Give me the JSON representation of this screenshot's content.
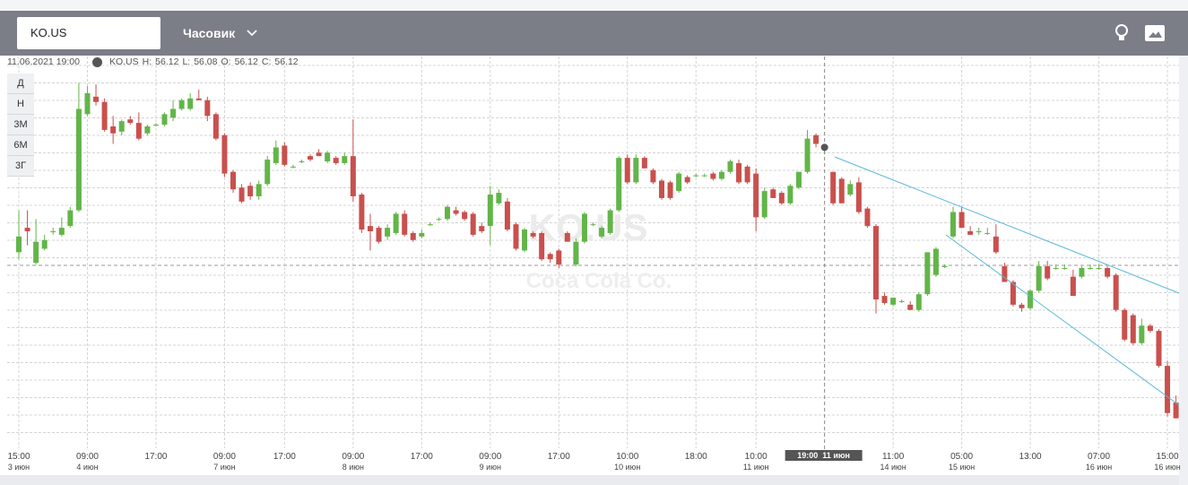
{
  "symbol": "KO.US",
  "interval": "Часовик",
  "periods": [
    "Д",
    "Н",
    "3М",
    "6М",
    "3Г"
  ],
  "info": {
    "datetime": "11.06.2021 19:00",
    "high_label": "H:",
    "low_label": "L:",
    "open_label": "O:",
    "close_label": "C:"
  },
  "watermark_name": "Coca Cola Co.",
  "chart_data": {
    "type": "candlestick",
    "up_color": "#62b549",
    "down_color": "#c9504d",
    "ylim": [
      54.45,
      56.64
    ],
    "grid": true,
    "crosshair_label": "19:00  11 июн",
    "categories": [
      "15:00",
      null,
      null,
      null,
      null,
      null,
      null,
      null,
      "09:00",
      null,
      null,
      null,
      null,
      null,
      null,
      null,
      "17:00",
      null,
      null,
      null,
      null,
      null,
      null,
      null,
      "09:00",
      null,
      null,
      null,
      null,
      null,
      null,
      "17:00",
      null,
      null,
      null,
      null,
      null,
      null,
      null,
      "09:00",
      null,
      null,
      null,
      null,
      null,
      null,
      null,
      "17:00",
      null,
      null,
      null,
      null,
      null,
      null,
      null,
      "09:00",
      null,
      null,
      null,
      null,
      null,
      null,
      null,
      "17:00",
      null,
      null,
      null,
      null,
      null,
      null,
      null,
      "10:00",
      null,
      null,
      null,
      null,
      null,
      null,
      null,
      "18:00",
      null,
      null,
      null,
      null,
      null,
      null,
      "10:00",
      null,
      null,
      null,
      null,
      null,
      null,
      null,
      null,
      null,
      null,
      null,
      null,
      null,
      null,
      null,
      "11:00",
      null,
      null,
      null,
      null,
      null,
      null,
      null,
      "05:00",
      null,
      null,
      null,
      null,
      null,
      null,
      null,
      "13:00",
      null,
      null,
      null,
      null,
      null,
      null,
      null,
      "07:00",
      null,
      null,
      null,
      null,
      null,
      null,
      null,
      "15:00",
      null
    ],
    "dates": [
      "3 июн",
      null,
      null,
      null,
      null,
      null,
      null,
      null,
      "4 июн",
      null,
      null,
      null,
      null,
      null,
      null,
      null,
      null,
      null,
      null,
      null,
      null,
      null,
      null,
      null,
      "7 июн",
      null,
      null,
      null,
      null,
      null,
      null,
      null,
      null,
      null,
      null,
      null,
      null,
      null,
      null,
      "8 июн",
      null,
      null,
      null,
      null,
      null,
      null,
      null,
      null,
      null,
      null,
      null,
      null,
      null,
      null,
      null,
      "9 июн",
      null,
      null,
      null,
      null,
      null,
      null,
      null,
      null,
      null,
      null,
      null,
      null,
      null,
      null,
      null,
      "10 июн",
      null,
      null,
      null,
      null,
      null,
      null,
      null,
      null,
      null,
      null,
      null,
      null,
      null,
      null,
      "11 июн",
      null,
      null,
      null,
      null,
      null,
      null,
      null,
      null,
      null,
      null,
      null,
      null,
      null,
      null,
      null,
      "14 июн",
      null,
      null,
      null,
      null,
      null,
      null,
      null,
      "15 июн",
      null,
      null,
      null,
      null,
      null,
      null,
      null,
      null,
      null,
      null,
      null,
      null,
      null,
      null,
      null,
      "16 июн",
      null,
      null,
      null,
      null,
      null,
      null,
      null,
      "16 июн",
      null
    ],
    "open": [
      55.52,
      55.66,
      55.46,
      55.54,
      55.64,
      55.62,
      55.67,
      55.76,
      56.31,
      56.41,
      56.38,
      56.24,
      56.21,
      56.28,
      56.26,
      56.2,
      56.25,
      56.25,
      56.29,
      56.34,
      56.34,
      56.4,
      56.39,
      56.31,
      56.19,
      55.98,
      55.89,
      55.9,
      55.84,
      55.91,
      56.03,
      56.13,
      56.01,
      56.04,
      56.07,
      56.09,
      56.04,
      56.06,
      56.03,
      56.07,
      55.85,
      55.67,
      55.66,
      55.61,
      55.63,
      55.74,
      55.63,
      55.61,
      55.68,
      55.71,
      55.71,
      55.76,
      55.75,
      55.74,
      55.67,
      55.67,
      55.8,
      55.81,
      55.68,
      55.53,
      55.63,
      55.63,
      55.51,
      55.53,
      55.63,
      55.45,
      55.58,
      55.68,
      55.61,
      55.63,
      55.76,
      56.06,
      55.92,
      56.06,
      55.99,
      55.93,
      55.92,
      55.87,
      55.95,
      55.96,
      55.96,
      55.97,
      55.94,
      55.98,
      56.03,
      56.01,
      55.97,
      55.72,
      55.88,
      55.86,
      55.8,
      55.89,
      55.98,
      56.19,
      56.12,
      55.98,
      55.94,
      55.85,
      55.92,
      55.77,
      55.67,
      55.27,
      55.22,
      55.24,
      55.22,
      55.19,
      55.28,
      55.39,
      55.44,
      55.61,
      55.75,
      55.64,
      55.64,
      55.63,
      55.61,
      55.44,
      55.35,
      55.22,
      55.2,
      55.3,
      55.44,
      55.43,
      55.43,
      55.38,
      55.38,
      55.43,
      55.43,
      55.43,
      55.39,
      55.19,
      55.16,
      55.0,
      55.1,
      55.07,
      54.87,
      54.66
    ],
    "high": [
      55.76,
      55.76,
      55.71,
      55.62,
      55.66,
      55.72,
      55.78,
      56.49,
      56.47,
      56.48,
      56.4,
      56.3,
      56.28,
      56.3,
      56.32,
      56.25,
      56.26,
      56.32,
      56.39,
      56.4,
      56.43,
      56.45,
      56.41,
      56.32,
      56.2,
      55.99,
      55.91,
      55.92,
      55.93,
      56.07,
      56.16,
      56.15,
      56.02,
      56.05,
      56.08,
      56.11,
      56.1,
      56.07,
      56.09,
      56.28,
      55.86,
      55.74,
      55.67,
      55.68,
      55.75,
      55.76,
      55.64,
      55.65,
      55.69,
      55.72,
      55.79,
      55.78,
      55.76,
      55.75,
      55.69,
      55.9,
      55.88,
      55.83,
      55.69,
      55.66,
      55.64,
      55.64,
      55.52,
      55.54,
      55.64,
      55.6,
      55.75,
      55.69,
      55.67,
      55.77,
      56.07,
      56.08,
      56.08,
      56.07,
      56.0,
      55.94,
      55.93,
      55.98,
      55.96,
      55.97,
      55.97,
      55.98,
      55.99,
      56.05,
      56.05,
      56.02,
      56.0,
      55.89,
      55.89,
      55.87,
      55.91,
      55.98,
      56.22,
      56.2,
      56.12,
      55.98,
      55.95,
      55.93,
      55.95,
      55.78,
      55.68,
      55.29,
      55.26,
      55.25,
      55.24,
      55.29,
      55.52,
      55.55,
      55.45,
      55.78,
      55.78,
      55.67,
      55.66,
      55.66,
      55.68,
      55.46,
      55.36,
      55.23,
      55.31,
      55.47,
      55.47,
      55.45,
      55.45,
      55.42,
      55.44,
      55.45,
      55.45,
      55.44,
      55.4,
      55.2,
      55.17,
      55.14,
      55.11,
      55.08,
      54.9,
      54.7
    ],
    "low": [
      55.48,
      55.56,
      55.45,
      55.53,
      55.62,
      55.61,
      55.66,
      55.75,
      56.3,
      56.36,
      56.21,
      56.14,
      56.19,
      56.25,
      56.16,
      56.19,
      56.24,
      56.24,
      56.27,
      56.33,
      56.33,
      56.39,
      56.27,
      56.16,
      55.95,
      55.86,
      55.8,
      55.82,
      55.82,
      55.9,
      56.02,
      56.01,
      56.0,
      56.03,
      56.04,
      56.07,
      56.03,
      56.02,
      56.02,
      55.81,
      55.63,
      55.53,
      55.57,
      55.59,
      55.62,
      55.61,
      55.58,
      55.6,
      55.67,
      55.7,
      55.7,
      55.73,
      55.7,
      55.61,
      55.63,
      55.56,
      55.79,
      55.64,
      55.53,
      55.52,
      55.6,
      55.47,
      55.46,
      55.43,
      55.58,
      55.44,
      55.57,
      55.67,
      55.6,
      55.62,
      55.75,
      55.91,
      55.91,
      56.0,
      55.91,
      55.82,
      55.82,
      55.86,
      55.91,
      55.95,
      55.95,
      55.93,
      55.93,
      55.97,
      55.91,
      55.91,
      55.64,
      55.71,
      55.83,
      55.79,
      55.79,
      55.88,
      55.97,
      56.12,
      56.08,
      55.79,
      55.8,
      55.84,
      55.74,
      55.66,
      55.17,
      55.22,
      55.21,
      55.23,
      55.19,
      55.18,
      55.27,
      55.38,
      55.43,
      55.6,
      55.66,
      55.62,
      55.62,
      55.62,
      55.51,
      55.35,
      55.21,
      55.18,
      55.19,
      55.29,
      55.36,
      55.42,
      55.42,
      55.27,
      55.37,
      55.42,
      55.42,
      55.37,
      55.18,
      55.01,
      54.99,
      54.99,
      55.06,
      54.86,
      54.58,
      54.57
    ],
    "close": [
      55.61,
      55.64,
      55.58,
      55.59,
      55.64,
      55.66,
      55.76,
      56.34,
      56.43,
      56.38,
      56.22,
      56.2,
      56.27,
      56.26,
      56.17,
      56.24,
      56.25,
      56.31,
      56.34,
      56.39,
      56.4,
      56.39,
      56.3,
      56.17,
      55.97,
      55.88,
      55.81,
      55.84,
      55.91,
      56.05,
      56.12,
      56.02,
      56.01,
      56.04,
      56.05,
      56.07,
      56.09,
      56.03,
      56.07,
      55.84,
      55.65,
      55.64,
      55.58,
      55.66,
      55.74,
      55.62,
      55.59,
      55.63,
      55.68,
      55.71,
      55.78,
      55.74,
      55.71,
      55.62,
      55.64,
      55.85,
      55.86,
      55.65,
      55.54,
      55.65,
      55.61,
      55.48,
      55.48,
      55.45,
      55.58,
      55.58,
      55.74,
      55.68,
      55.66,
      55.76,
      56.06,
      55.92,
      56.06,
      56.0,
      55.92,
      55.83,
      55.83,
      55.97,
      55.92,
      55.96,
      55.96,
      55.94,
      55.98,
      56.04,
      55.92,
      55.92,
      55.72,
      55.87,
      55.83,
      55.8,
      55.9,
      55.98,
      56.17,
      56.14,
      56.12,
      55.8,
      55.8,
      55.91,
      55.75,
      55.67,
      55.25,
      55.23,
      55.26,
      55.24,
      55.19,
      55.28,
      55.52,
      55.54,
      55.44,
      55.75,
      55.66,
      55.62,
      55.64,
      55.63,
      55.52,
      55.35,
      55.22,
      55.2,
      55.3,
      55.44,
      55.37,
      55.43,
      55.43,
      55.27,
      55.43,
      55.43,
      55.43,
      55.38,
      55.19,
      55.02,
      55.0,
      55.1,
      55.07,
      54.87,
      54.6,
      54.57
    ]
  }
}
